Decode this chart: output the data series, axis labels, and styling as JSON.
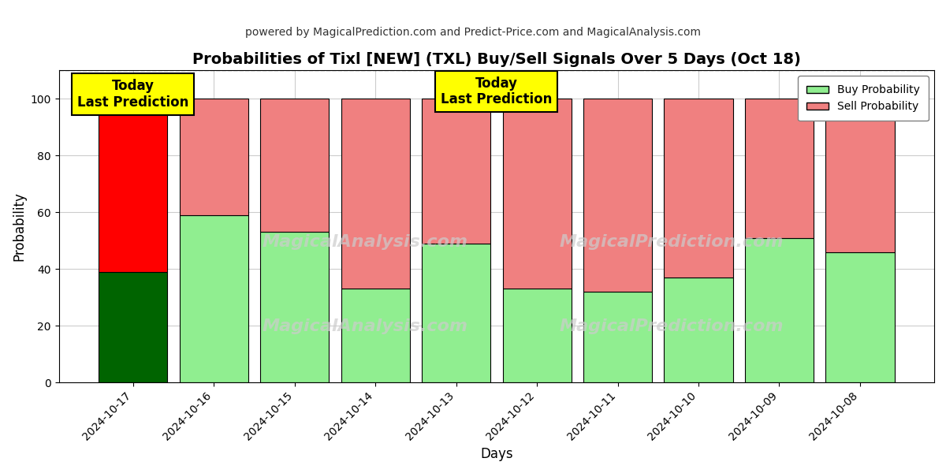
{
  "title": "Probabilities of Tixl [NEW] (TXL) Buy/Sell Signals Over 5 Days (Oct 18)",
  "subtitle": "powered by MagicalPrediction.com and Predict-Price.com and MagicalAnalysis.com",
  "xlabel": "Days",
  "ylabel": "Probability",
  "dates": [
    "2024-10-17",
    "2024-10-16",
    "2024-10-15",
    "2024-10-14",
    "2024-10-13",
    "2024-10-12",
    "2024-10-11",
    "2024-10-10",
    "2024-10-09",
    "2024-10-08"
  ],
  "buy_probs": [
    39,
    59,
    53,
    33,
    49,
    33,
    32,
    37,
    51,
    46
  ],
  "sell_probs": [
    61,
    41,
    47,
    67,
    51,
    67,
    68,
    63,
    49,
    54
  ],
  "today_buy_color": "#006400",
  "today_sell_color": "#ff0000",
  "buy_color": "#90EE90",
  "sell_color": "#F08080",
  "bar_edge_color": "#000000",
  "ylim": [
    0,
    110
  ],
  "yticks": [
    0,
    20,
    40,
    60,
    80,
    100
  ],
  "dashed_line_y": 110,
  "watermark_line1": "MagicalAnalysis.com",
  "watermark_line2": "MagicalPrediction.com",
  "legend_buy_label": "Buy Probability",
  "legend_sell_label": "Sell Probability",
  "today_label_line1": "Today",
  "today_label_line2": "Last Prediction",
  "bg_color": "#ffffff",
  "grid_color": "#cccccc",
  "figsize": [
    12.0,
    6.0
  ],
  "dpi": 100
}
